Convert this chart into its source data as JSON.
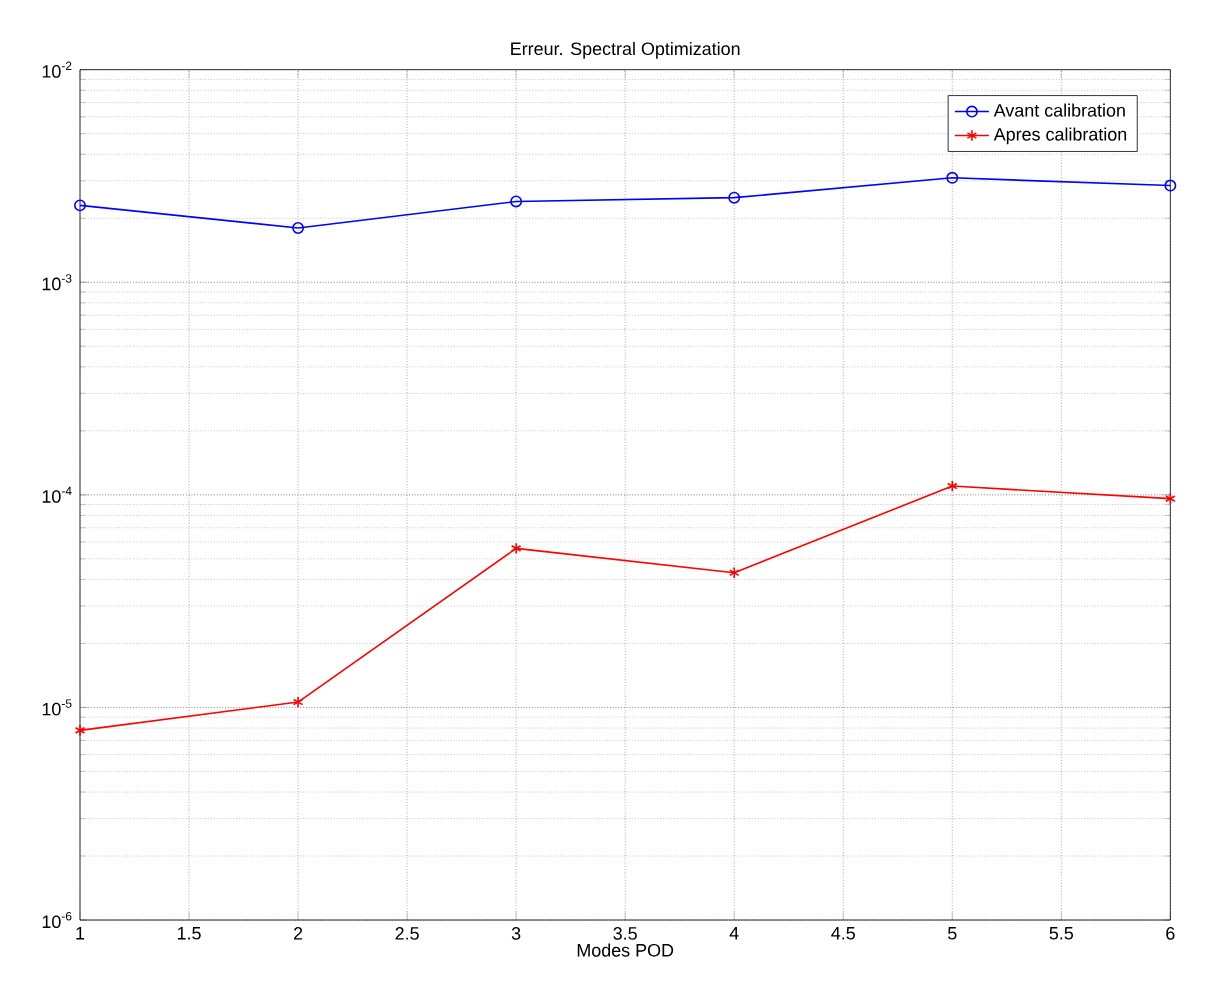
{
  "chart_data": {
    "type": "line",
    "title": "Erreur. Spectral Optimization",
    "xlabel": "Modes POD",
    "x": [
      1,
      2,
      3,
      4,
      5,
      6
    ],
    "series": [
      {
        "name": "Avant calibration",
        "color": "#0000ff",
        "marker": "circle",
        "values": [
          0.0023,
          0.0018,
          0.0024,
          0.0025,
          0.0031,
          0.00285
        ]
      },
      {
        "name": "Apres calibration",
        "color": "#ff0000",
        "marker": "cross",
        "values": [
          7.8e-06,
          1.06e-05,
          5.6e-05,
          4.3e-05,
          0.00011,
          9.6e-05
        ]
      }
    ],
    "log": "y",
    "grid": true,
    "legend": "top right",
    "line_style": "solid",
    "xlim": [
      1,
      6
    ],
    "xticks": [
      1,
      1.5,
      2,
      2.5,
      3,
      3.5,
      4,
      4.5,
      5,
      5.5,
      6
    ],
    "ylim": [
      1e-06,
      0.01
    ],
    "yticks": [
      {
        "value": 1e-06,
        "label": "10$^{-6}$"
      },
      {
        "value": 1e-05,
        "label": "10$^{-5}$"
      },
      {
        "value": 0.0001,
        "label": "10$^{-4}$"
      },
      {
        "value": 0.001,
        "label": "10$^{-3}$"
      },
      {
        "value": 0.01,
        "label": "10$^{-2}$"
      }
    ]
  }
}
